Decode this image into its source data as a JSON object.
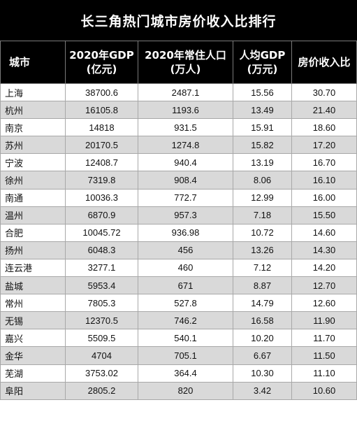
{
  "title": "长三角热门城市房价收入比排行",
  "headers": [
    {
      "line1": "城市",
      "line2": ""
    },
    {
      "line1": "2020年GDP",
      "line2": "(亿元)"
    },
    {
      "line1": "2020年常住人口",
      "line2": "(万人)"
    },
    {
      "line1": "人均GDP",
      "line2": "(万元)"
    },
    {
      "line1": "房价收入比",
      "line2": ""
    }
  ],
  "rows": [
    {
      "city": "上海",
      "gdp": "38700.6",
      "pop": "2487.1",
      "per_gdp": "15.56",
      "ratio": "30.70"
    },
    {
      "city": "杭州",
      "gdp": "16105.8",
      "pop": "1193.6",
      "per_gdp": "13.49",
      "ratio": "21.40"
    },
    {
      "city": "南京",
      "gdp": "14818",
      "pop": "931.5",
      "per_gdp": "15.91",
      "ratio": "18.60"
    },
    {
      "city": "苏州",
      "gdp": "20170.5",
      "pop": "1274.8",
      "per_gdp": "15.82",
      "ratio": "17.20"
    },
    {
      "city": "宁波",
      "gdp": "12408.7",
      "pop": "940.4",
      "per_gdp": "13.19",
      "ratio": "16.70"
    },
    {
      "city": "徐州",
      "gdp": "7319.8",
      "pop": "908.4",
      "per_gdp": "8.06",
      "ratio": "16.10"
    },
    {
      "city": "南通",
      "gdp": "10036.3",
      "pop": "772.7",
      "per_gdp": "12.99",
      "ratio": "16.00"
    },
    {
      "city": "温州",
      "gdp": "6870.9",
      "pop": "957.3",
      "per_gdp": "7.18",
      "ratio": "15.50"
    },
    {
      "city": "合肥",
      "gdp": "10045.72",
      "pop": "936.98",
      "per_gdp": "10.72",
      "ratio": "14.60"
    },
    {
      "city": "扬州",
      "gdp": "6048.3",
      "pop": "456",
      "per_gdp": "13.26",
      "ratio": "14.30"
    },
    {
      "city": "连云港",
      "gdp": "3277.1",
      "pop": "460",
      "per_gdp": "7.12",
      "ratio": "14.20"
    },
    {
      "city": "盐城",
      "gdp": "5953.4",
      "pop": "671",
      "per_gdp": "8.87",
      "ratio": "12.70"
    },
    {
      "city": "常州",
      "gdp": "7805.3",
      "pop": "527.8",
      "per_gdp": "14.79",
      "ratio": "12.60"
    },
    {
      "city": "无锡",
      "gdp": "12370.5",
      "pop": "746.2",
      "per_gdp": "16.58",
      "ratio": "11.90"
    },
    {
      "city": "嘉兴",
      "gdp": "5509.5",
      "pop": "540.1",
      "per_gdp": "10.20",
      "ratio": "11.70"
    },
    {
      "city": "金华",
      "gdp": "4704",
      "pop": "705.1",
      "per_gdp": "6.67",
      "ratio": "11.50"
    },
    {
      "city": "芜湖",
      "gdp": "3753.02",
      "pop": "364.4",
      "per_gdp": "10.30",
      "ratio": "11.10"
    },
    {
      "city": "阜阳",
      "gdp": "2805.2",
      "pop": "820",
      "per_gdp": "3.42",
      "ratio": "10.60"
    }
  ],
  "colors": {
    "header_bg": "#000000",
    "header_text": "#ffffff",
    "row_band": "#d9d9d9",
    "row_plain": "#ffffff"
  }
}
